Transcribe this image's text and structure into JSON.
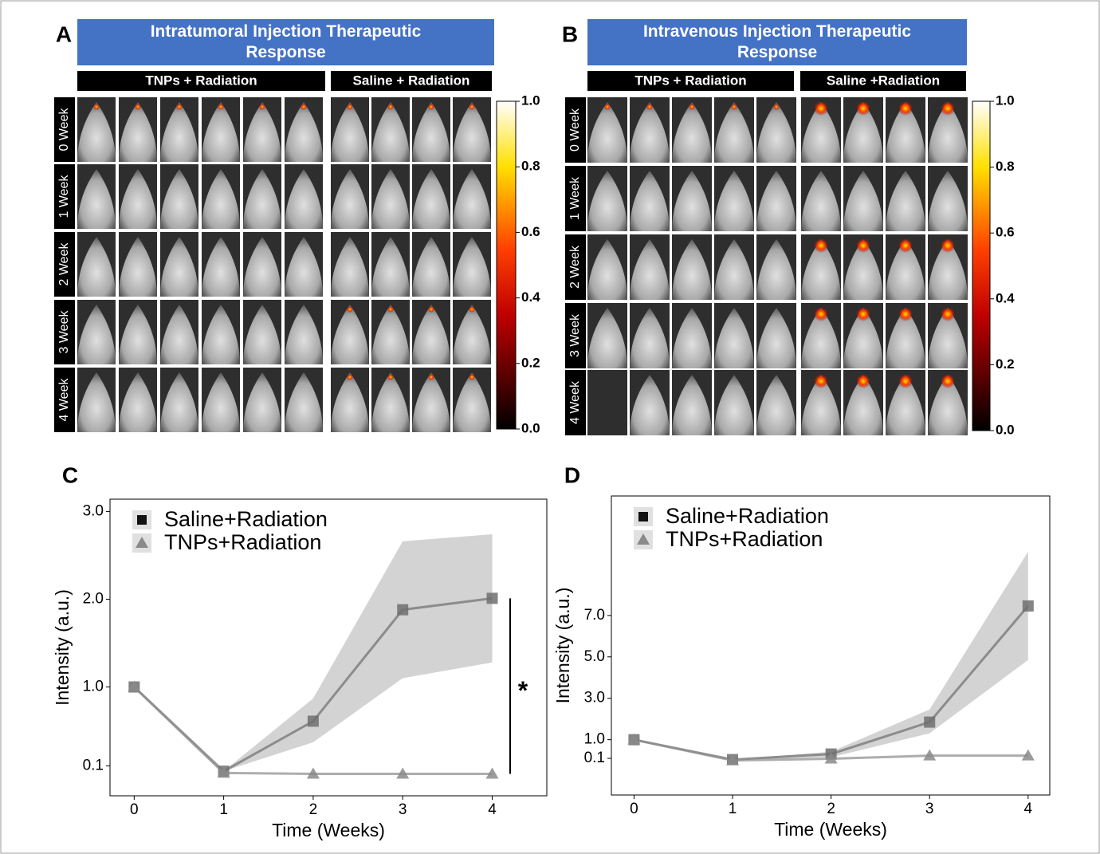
{
  "panels": {
    "A": {
      "label": "A",
      "title": "Intratumoral Injection Therapeutic Response",
      "groups": [
        "TNPs + Radiation",
        "Saline + Radiation"
      ],
      "rows": [
        "0 Week",
        "1 Week",
        "2 Week",
        "3 Week",
        "4 Week"
      ],
      "colorbar_ticks": [
        {
          "value": 1.0,
          "label": "1.0"
        },
        {
          "value": 0.8,
          "label": "0.8"
        },
        {
          "value": 0.6,
          "label": "0.6"
        },
        {
          "value": 0.4,
          "label": "0.4"
        },
        {
          "value": 0.2,
          "label": "0.2"
        },
        {
          "value": 0.0,
          "label": "0.0"
        }
      ]
    },
    "B": {
      "label": "B",
      "title": "Intravenous Injection Therapeutic Response",
      "groups": [
        "TNPs + Radiation",
        "Saline +Radiation"
      ],
      "rows": [
        "0 Week",
        "1 Week",
        "2 Week",
        "3 Week",
        "4 Week"
      ],
      "colorbar_ticks": [
        {
          "value": 1.0,
          "label": "1.0"
        },
        {
          "value": 0.8,
          "label": "0.8"
        },
        {
          "value": 0.6,
          "label": "0.6"
        },
        {
          "value": 0.4,
          "label": "0.4"
        },
        {
          "value": 0.2,
          "label": "0.2"
        },
        {
          "value": 0.0,
          "label": "0.0"
        }
      ]
    }
  },
  "chart_data": [
    {
      "type": "line",
      "panel": "C",
      "x_label": "Time (Weeks)",
      "y_label": "Intensity (a.u.)",
      "annotation": "*",
      "x": [
        0,
        1,
        2,
        3,
        4
      ],
      "xlim": [
        -0.27,
        4.61
      ],
      "xticks": [
        0,
        1,
        2,
        3,
        4
      ],
      "ylim": [
        -0.24,
        3.14
      ],
      "yticks": [
        {
          "value": 0.1,
          "label": "0.1"
        },
        {
          "value": 1.0,
          "label": "1.0"
        },
        {
          "value": 2.0,
          "label": "2.0"
        },
        {
          "value": 3.0,
          "label": "3.0"
        }
      ],
      "band_color": "#d3d3d3",
      "series": [
        {
          "name": "Saline+Radiation",
          "color": "#6e6e6e",
          "marker": "square",
          "values": [
            1.0,
            0.04,
            0.61,
            1.88,
            2.01
          ],
          "upper": [
            1.0,
            0.04,
            0.87,
            2.66,
            2.74
          ],
          "lower": [
            1.0,
            0.04,
            0.37,
            1.1,
            1.28
          ]
        },
        {
          "name": "TNPs+Radiation",
          "color": "#8a8a8a",
          "marker": "triangle",
          "values": [
            1.0,
            0.02,
            0.01,
            0.01,
            0.01
          ]
        }
      ]
    },
    {
      "type": "line",
      "panel": "D",
      "x_label": "Time (Weeks)",
      "y_label": "Intensity (a.u.)",
      "x": [
        0,
        1,
        2,
        3,
        4
      ],
      "xlim": [
        -0.23,
        4.22
      ],
      "xticks": [
        0,
        1,
        2,
        3,
        4
      ],
      "ylim": [
        -1.67,
        12.77
      ],
      "yticks": [
        {
          "value": 0.1,
          "label": "0.1"
        },
        {
          "value": 1.0,
          "label": "1.0"
        },
        {
          "value": 3.0,
          "label": "3.0"
        },
        {
          "value": 5.0,
          "label": "5.0"
        },
        {
          "value": 7.0,
          "label": "7.0"
        }
      ],
      "band_color": "#d3d3d3",
      "series": [
        {
          "name": "Saline+Radiation",
          "color": "#6e6e6e",
          "marker": "square",
          "values": [
            1.0,
            0.04,
            0.31,
            1.85,
            7.46
          ],
          "upper": [
            1.0,
            0.04,
            0.42,
            2.46,
            10.08
          ],
          "lower": [
            1.0,
            0.04,
            0.15,
            1.31,
            4.85
          ]
        },
        {
          "name": "TNPs+Radiation",
          "color": "#8a8a8a",
          "marker": "triangle",
          "values": [
            1.0,
            0.0,
            0.08,
            0.23,
            0.23
          ]
        }
      ]
    }
  ]
}
